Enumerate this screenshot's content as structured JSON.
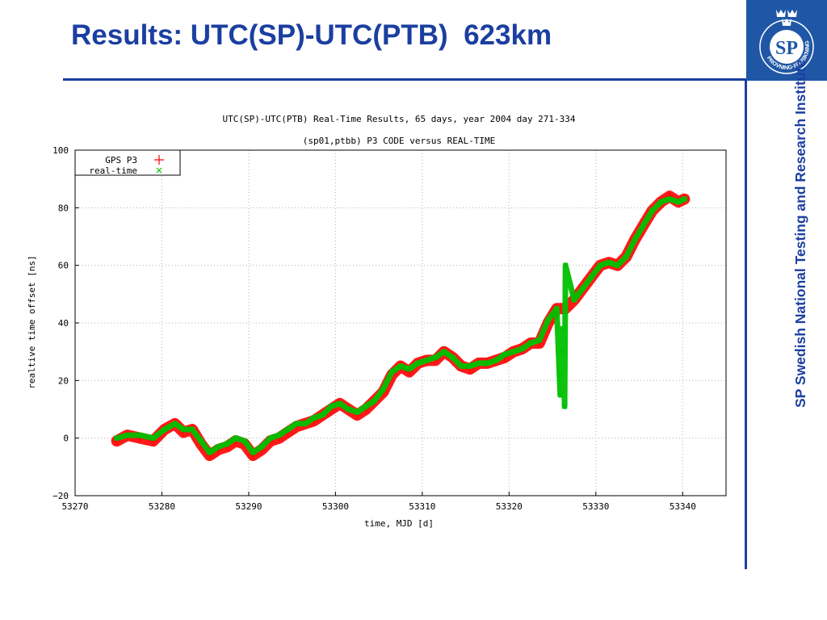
{
  "slide": {
    "title": "Results: UTC(SP)-UTC(PTB)  623km",
    "side_text": "SP Swedish National Testing and Research Institute",
    "logo": {
      "text": "SP",
      "ring_text": "PROVNING·FORSKNING",
      "color": "#1f57a6"
    }
  },
  "chart_data": {
    "type": "scatter",
    "title": "UTC(SP)-UTC(PTB) Real-Time Results, 65 days, year 2004 day 271-334",
    "subtitle": "(sp01,ptbb) P3 CODE versus REAL-TIME",
    "xlabel": "time, MJD [d]",
    "ylabel": "realtive time offset [ns]",
    "xlim": [
      53270,
      53345
    ],
    "ylim": [
      -20,
      100
    ],
    "xticks": [
      53270,
      53280,
      53290,
      53300,
      53310,
      53320,
      53330,
      53340
    ],
    "yticks": [
      -20,
      0,
      20,
      40,
      60,
      80,
      100
    ],
    "grid": true,
    "legend_position": "top-left",
    "series": [
      {
        "name": "GPS P3",
        "marker": "+",
        "color": "#ff0000",
        "x": [
          53274.8,
          53276,
          53277.5,
          53279,
          53280.3,
          53281.5,
          53282.5,
          53283.5,
          53284.5,
          53285.5,
          53286.5,
          53287.5,
          53288.5,
          53289.5,
          53290.5,
          53291.5,
          53292.5,
          53293.5,
          53294.5,
          53295.5,
          53296.5,
          53297.5,
          53298.5,
          53299.5,
          53300.5,
          53301.5,
          53302.5,
          53303.5,
          53304.5,
          53305.5,
          53306.5,
          53307.5,
          53308.5,
          53309.5,
          53310.5,
          53311.5,
          53312.5,
          53313.5,
          53314.5,
          53315.5,
          53316.5,
          53317.5,
          53318.5,
          53319.5,
          53320.5,
          53321.5,
          53322.5,
          53323.5,
          53324.5,
          53325.5,
          53326.5,
          53327.5,
          53328.5,
          53329.5,
          53330.5,
          53331.5,
          53332.5,
          53333.5,
          53334.5,
          53335.5,
          53336.5,
          53337.5,
          53338.5,
          53339.5,
          53340.2
        ],
        "y": [
          -1,
          1,
          0,
          -1,
          3,
          5,
          2,
          3,
          -2,
          -6,
          -4,
          -3,
          -1,
          -2,
          -6,
          -4,
          -1,
          0,
          2,
          4,
          5,
          6,
          8,
          10,
          12,
          10,
          8,
          10,
          13,
          16,
          22,
          25,
          23,
          26,
          27,
          27,
          30,
          28,
          25,
          24,
          26,
          26,
          27,
          28,
          30,
          31,
          33,
          33,
          40,
          45,
          45,
          48,
          52,
          56,
          60,
          61,
          60,
          63,
          69,
          74,
          79,
          82,
          84,
          82,
          83
        ]
      },
      {
        "name": "real-time",
        "marker": "x",
        "color": "#00c000",
        "x": [
          53274.8,
          53276,
          53277.5,
          53279,
          53280.3,
          53281.5,
          53282.5,
          53283.5,
          53284.5,
          53285.5,
          53286.5,
          53287.5,
          53288.5,
          53289.5,
          53290.5,
          53291.5,
          53292.5,
          53293.5,
          53294.5,
          53295.5,
          53296.5,
          53297.5,
          53298.5,
          53299.5,
          53300.5,
          53301.5,
          53302.5,
          53303.5,
          53304.5,
          53305.5,
          53306.5,
          53307.5,
          53308.5,
          53309.5,
          53310.5,
          53311.5,
          53312.5,
          53313.5,
          53314.5,
          53315.5,
          53316.5,
          53317.5,
          53318.5,
          53319.5,
          53320.5,
          53321.5,
          53322.5,
          53323.5,
          53324.5,
          53325.5,
          53325.9,
          53326.0,
          53326.1,
          53326.2,
          53326.4,
          53326.5,
          53327.5,
          53328.5,
          53329.5,
          53330.5,
          53331.5,
          53332.5,
          53333.5,
          53334.5,
          53335.5,
          53336.5,
          53337.5,
          53338.5,
          53339.5,
          53340.2
        ],
        "y": [
          0,
          1,
          1,
          0,
          3,
          5,
          3,
          3,
          -1,
          -5,
          -3,
          -2,
          0,
          -1,
          -5,
          -3,
          0,
          1,
          3,
          5,
          5,
          7,
          8,
          11,
          12,
          10,
          9,
          11,
          13,
          17,
          23,
          25,
          24,
          26,
          27,
          28,
          30,
          28,
          25,
          25,
          26,
          26,
          27,
          29,
          30,
          31,
          33,
          34,
          41,
          45,
          15,
          22,
          30,
          38,
          11,
          60,
          48,
          52,
          56,
          60,
          61,
          60,
          63,
          69,
          74,
          79,
          82,
          83,
          82,
          83
        ]
      }
    ]
  }
}
